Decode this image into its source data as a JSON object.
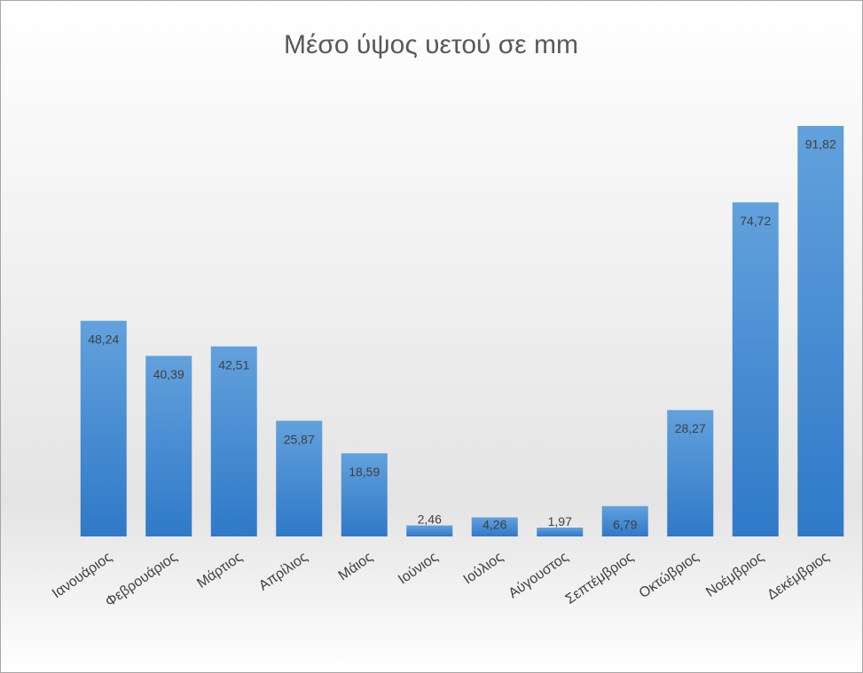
{
  "chart_data": {
    "type": "bar",
    "title": "Μέσο ύψος υετού σε mm",
    "categories": [
      "Ιανουάριος",
      "Φεβρουάριος",
      "Μάρτιος",
      "Απρίλιος",
      "Μάιος",
      "Ιούνιος",
      "Ιούλιος",
      "Αύγουστος",
      "Σεπτέμβριος",
      "Οκτώβριος",
      "Νοέμβριος",
      "Δεκέμβριος"
    ],
    "values": [
      48.24,
      40.39,
      42.51,
      25.87,
      18.59,
      2.46,
      4.26,
      1.97,
      6.79,
      28.27,
      74.72,
      91.82
    ],
    "value_labels": [
      "48,24",
      "40,39",
      "42,51",
      "25,87",
      "18,59",
      "2,46",
      "4,26",
      "1,97",
      "6,79",
      "28,27",
      "74,72",
      "91,82"
    ],
    "color": "#4a8fd6"
  }
}
